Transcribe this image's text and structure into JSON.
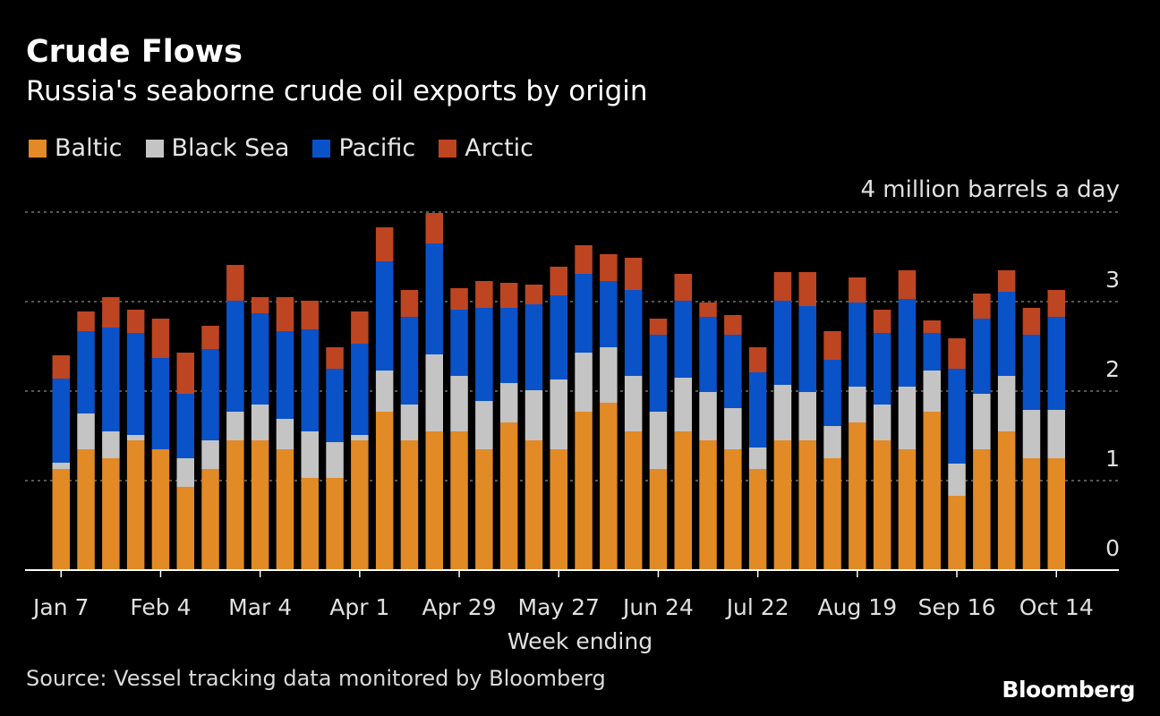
{
  "header": {
    "title": "Crude Flows",
    "subtitle": "Russia's seaborne crude oil exports by origin"
  },
  "legend": [
    {
      "label": "Baltic",
      "color": "#e18a26"
    },
    {
      "label": "Black Sea",
      "color": "#c4c4c4"
    },
    {
      "label": "Pacific",
      "color": "#0a52c8"
    },
    {
      "label": "Arctic",
      "color": "#bd4522"
    }
  ],
  "footer": {
    "source": "Source: Vessel tracking data monitored by Bloomberg",
    "brand": "Bloomberg"
  },
  "chart_data": {
    "type": "bar",
    "stacked": true,
    "xlabel": "Week ending",
    "ylabel": "",
    "unit_label": "4 million barrels a day",
    "ylim": [
      0,
      4
    ],
    "yticks": [
      0,
      1,
      2,
      3
    ],
    "grid": true,
    "tick_labels": [
      "Jan 7",
      "Feb 4",
      "Mar 4",
      "Apr 1",
      "Apr 29",
      "May 27",
      "Jun 24",
      "Jul 22",
      "Aug 19",
      "Sep 16",
      "Oct 14"
    ],
    "tick_label_positions": [
      0,
      4,
      8,
      12,
      16,
      20,
      24,
      28,
      32,
      36,
      40
    ],
    "series": [
      {
        "name": "Baltic",
        "color": "#e18a26",
        "values": [
          1.13,
          1.35,
          1.25,
          1.45,
          1.35,
          0.93,
          1.13,
          1.45,
          1.45,
          1.35,
          1.03,
          1.03,
          1.45,
          1.77,
          1.45,
          1.55,
          1.55,
          1.35,
          1.65,
          1.45,
          1.35,
          1.77,
          1.87,
          1.55,
          1.13,
          1.55,
          1.45,
          1.35,
          1.13,
          1.45,
          1.45,
          1.25,
          1.65,
          1.45,
          1.35,
          1.77,
          0.83,
          1.35,
          1.55,
          1.25,
          1.25
        ]
      },
      {
        "name": "Black Sea",
        "color": "#c4c4c4",
        "values": [
          0.07,
          0.4,
          0.3,
          0.06,
          0.0,
          0.32,
          0.32,
          0.32,
          0.4,
          0.34,
          0.52,
          0.4,
          0.06,
          0.46,
          0.4,
          0.86,
          0.62,
          0.54,
          0.44,
          0.56,
          0.78,
          0.66,
          0.62,
          0.62,
          0.64,
          0.6,
          0.54,
          0.46,
          0.24,
          0.62,
          0.54,
          0.36,
          0.4,
          0.4,
          0.7,
          0.46,
          0.36,
          0.62,
          0.62,
          0.54,
          0.54
        ]
      },
      {
        "name": "Pacific",
        "color": "#0a52c8",
        "values": [
          0.94,
          0.92,
          1.16,
          1.14,
          1.02,
          0.72,
          1.02,
          1.24,
          1.02,
          0.98,
          1.14,
          0.82,
          1.02,
          1.22,
          0.98,
          1.24,
          0.74,
          1.04,
          0.84,
          0.96,
          0.94,
          0.88,
          0.74,
          0.96,
          0.86,
          0.86,
          0.84,
          0.82,
          0.84,
          0.94,
          0.96,
          0.74,
          0.94,
          0.8,
          0.98,
          0.42,
          1.06,
          0.84,
          0.94,
          0.84,
          1.04
        ]
      },
      {
        "name": "Arctic",
        "color": "#bd4522",
        "values": [
          0.26,
          0.22,
          0.34,
          0.26,
          0.44,
          0.46,
          0.26,
          0.4,
          0.18,
          0.38,
          0.32,
          0.24,
          0.36,
          0.38,
          0.3,
          0.34,
          0.24,
          0.3,
          0.28,
          0.22,
          0.32,
          0.32,
          0.3,
          0.36,
          0.18,
          0.3,
          0.16,
          0.22,
          0.28,
          0.32,
          0.38,
          0.32,
          0.28,
          0.26,
          0.32,
          0.14,
          0.34,
          0.28,
          0.24,
          0.3,
          0.3
        ]
      }
    ]
  }
}
